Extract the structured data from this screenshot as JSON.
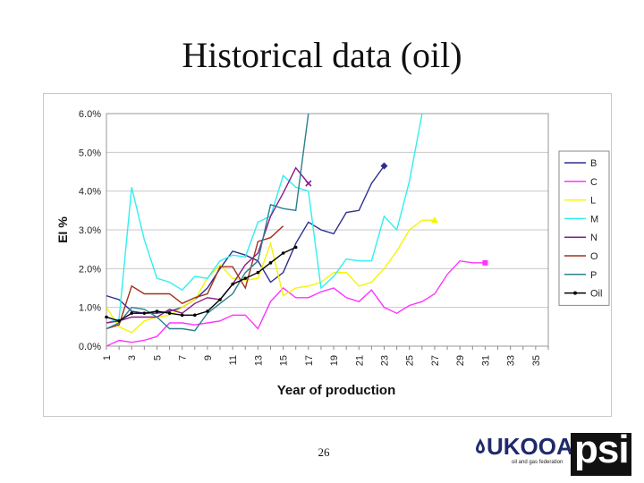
{
  "slide": {
    "title": "Historical data (oil)",
    "page_number": "26"
  },
  "logos": {
    "ukooa": "UKOOA",
    "ukooa_tagline": "oil and gas federation",
    "psi": "psi"
  },
  "chart_data": {
    "type": "line",
    "title": "",
    "xlabel": "Year of production",
    "ylabel": "EI %",
    "xlim": [
      1,
      36
    ],
    "ylim": [
      0,
      6
    ],
    "x_ticks": [
      1,
      3,
      5,
      7,
      9,
      11,
      13,
      15,
      17,
      19,
      21,
      23,
      25,
      27,
      29,
      31,
      33,
      35
    ],
    "y_ticks": [
      "0.0%",
      "1.0%",
      "2.0%",
      "3.0%",
      "4.0%",
      "5.0%",
      "6.0%"
    ],
    "legend_position": "right",
    "grid": true,
    "series": [
      {
        "name": "B",
        "color": "#2f2f8f",
        "end_marker": "diamond",
        "x": [
          1,
          2,
          3,
          4,
          5,
          6,
          7,
          8,
          9,
          10,
          11,
          12,
          13,
          14,
          15,
          16,
          17,
          18,
          19,
          20,
          21,
          22,
          23
        ],
        "values": [
          1.3,
          1.2,
          0.9,
          0.85,
          0.85,
          0.9,
          1.0,
          1.2,
          1.5,
          2.0,
          2.45,
          2.35,
          2.2,
          1.65,
          1.9,
          2.65,
          3.2,
          3.0,
          2.9,
          3.45,
          3.5,
          4.2,
          4.65
        ]
      },
      {
        "name": "C",
        "color": "#ff33ff",
        "end_marker": "square",
        "x": [
          1,
          2,
          3,
          4,
          5,
          6,
          7,
          8,
          9,
          10,
          11,
          12,
          13,
          14,
          15,
          16,
          17,
          18,
          19,
          20,
          21,
          22,
          23,
          24,
          25,
          26,
          27,
          28,
          29,
          30,
          31
        ],
        "values": [
          0.0,
          0.15,
          0.1,
          0.15,
          0.25,
          0.6,
          0.6,
          0.55,
          0.6,
          0.65,
          0.8,
          0.8,
          0.45,
          1.15,
          1.5,
          1.25,
          1.25,
          1.4,
          1.5,
          1.25,
          1.15,
          1.45,
          1.0,
          0.85,
          1.05,
          1.15,
          1.35,
          1.85,
          2.2,
          2.15,
          2.15
        ]
      },
      {
        "name": "L",
        "color": "#f5f500",
        "end_marker": "triangle",
        "x": [
          1,
          2,
          3,
          4,
          5,
          6,
          7,
          8,
          9,
          10,
          11,
          12,
          13,
          14,
          15,
          16,
          17,
          18,
          19,
          20,
          21,
          22,
          23,
          24,
          25,
          26,
          27
        ],
        "values": [
          1.0,
          0.5,
          0.35,
          0.65,
          0.75,
          0.8,
          1.0,
          1.2,
          1.75,
          2.1,
          1.75,
          1.7,
          1.75,
          2.65,
          1.3,
          1.5,
          1.55,
          1.65,
          1.9,
          1.9,
          1.55,
          1.65,
          2.0,
          2.45,
          3.0,
          3.25,
          3.25
        ]
      },
      {
        "name": "M",
        "color": "#33eeee",
        "end_marker": "none",
        "x": [
          1,
          2,
          3,
          4,
          5,
          6,
          7,
          8,
          9,
          10,
          11,
          12,
          13,
          14,
          15,
          16,
          17,
          18,
          19,
          20,
          21,
          22,
          23,
          24,
          25,
          26
        ],
        "values": [
          0.6,
          0.7,
          4.1,
          2.75,
          1.75,
          1.65,
          1.45,
          1.8,
          1.75,
          2.2,
          2.35,
          2.3,
          3.2,
          3.35,
          4.4,
          4.1,
          4.0,
          1.5,
          1.8,
          2.25,
          2.2,
          2.2,
          3.35,
          3.0,
          4.25,
          6.0
        ]
      },
      {
        "name": "N",
        "color": "#8b1a8b",
        "end_marker": "x",
        "x": [
          1,
          2,
          3,
          4,
          5,
          6,
          7,
          8,
          9,
          10,
          11,
          12,
          13,
          14,
          15,
          16,
          17
        ],
        "values": [
          0.6,
          0.65,
          0.75,
          0.75,
          0.75,
          0.95,
          0.85,
          1.1,
          1.25,
          1.2,
          1.6,
          2.1,
          2.4,
          3.35,
          3.95,
          4.6,
          4.2
        ]
      },
      {
        "name": "O",
        "color": "#a0301a",
        "end_marker": "none",
        "x": [
          1,
          2,
          3,
          4,
          5,
          6,
          7,
          8,
          9,
          10,
          11,
          12,
          13,
          14,
          15
        ],
        "values": [
          0.45,
          0.55,
          1.55,
          1.35,
          1.35,
          1.35,
          1.1,
          1.25,
          1.35,
          2.05,
          2.05,
          1.5,
          2.7,
          2.8,
          3.1
        ]
      },
      {
        "name": "P",
        "color": "#2a7f8f",
        "end_marker": "none",
        "x": [
          1,
          2,
          3,
          4,
          5,
          6,
          7,
          8,
          9,
          10,
          11,
          12,
          13,
          14,
          15,
          16,
          17
        ],
        "values": [
          0.45,
          0.6,
          1.0,
          0.95,
          0.75,
          0.45,
          0.45,
          0.4,
          0.85,
          1.1,
          1.35,
          1.9,
          2.2,
          3.65,
          3.55,
          3.5,
          6.0
        ]
      },
      {
        "name": "Oil",
        "color": "#000000",
        "end_marker": "none",
        "point_markers": true,
        "x": [
          1,
          2,
          3,
          4,
          5,
          6,
          7,
          8,
          9,
          10,
          11,
          12,
          13,
          14,
          15,
          16
        ],
        "values": [
          0.75,
          0.65,
          0.85,
          0.85,
          0.9,
          0.85,
          0.8,
          0.8,
          0.9,
          1.2,
          1.6,
          1.75,
          1.9,
          2.15,
          2.4,
          2.55
        ]
      }
    ]
  }
}
